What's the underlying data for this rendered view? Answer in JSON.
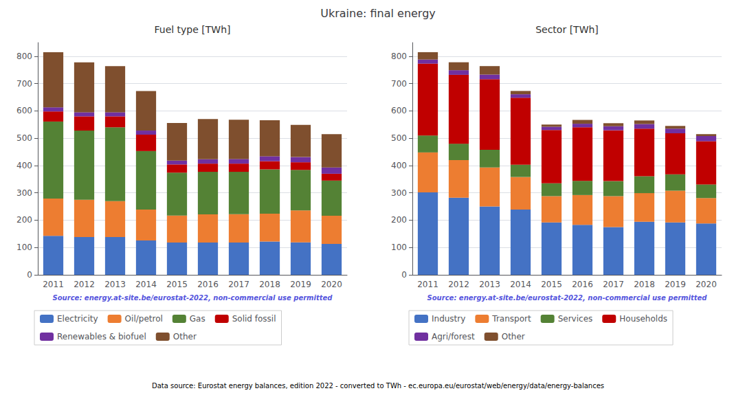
{
  "title": "Ukraine: final energy",
  "annotations": [
    "Data source: Eurostat energy balances, edition 2022 - converted to TWh - ec.europa.eu/eurostat/web/energy/data/energy-balances"
  ],
  "chart_data": [
    {
      "type": "bar",
      "title": "Fuel type [TWh]",
      "categories": [
        "2011",
        "2012",
        "2013",
        "2014",
        "2015",
        "2016",
        "2017",
        "2018",
        "2019",
        "2020"
      ],
      "series": [
        {
          "name": "Electricity",
          "color": "#4472c4",
          "values": [
            143,
            138,
            138,
            126,
            118,
            118,
            118,
            122,
            119,
            113
          ]
        },
        {
          "name": "Oil/petrol",
          "color": "#ed7d31",
          "values": [
            136,
            137,
            132,
            113,
            99,
            103,
            104,
            102,
            117,
            103
          ]
        },
        {
          "name": "Gas",
          "color": "#548235",
          "values": [
            282,
            253,
            270,
            214,
            157,
            156,
            155,
            162,
            148,
            129
          ]
        },
        {
          "name": "Solid fossil",
          "color": "#c00000",
          "values": [
            37,
            52,
            40,
            60,
            30,
            30,
            30,
            30,
            28,
            25
          ]
        },
        {
          "name": "Renewables & biofuel",
          "color": "#7030a0",
          "values": [
            15,
            15,
            15,
            15,
            14,
            16,
            17,
            18,
            19,
            23
          ]
        },
        {
          "name": "Other",
          "color": "#7f4f2e",
          "values": [
            202,
            183,
            169,
            145,
            138,
            147,
            144,
            132,
            118,
            122
          ]
        }
      ],
      "stacked": true,
      "ylim": [
        0,
        850
      ],
      "yticks": [
        0,
        100,
        200,
        300,
        400,
        500,
        600,
        700,
        800
      ],
      "grid": true,
      "legend": "bottom",
      "annotations": [
        "Source: energy.at-site.be/eurostat-2022, non-commercial use permitted"
      ]
    },
    {
      "type": "bar",
      "title": "Sector [TWh]",
      "categories": [
        "2011",
        "2012",
        "2013",
        "2014",
        "2015",
        "2016",
        "2017",
        "2018",
        "2019",
        "2020"
      ],
      "series": [
        {
          "name": "Industry",
          "color": "#4472c4",
          "values": [
            302,
            282,
            250,
            239,
            192,
            183,
            175,
            194,
            192,
            188
          ]
        },
        {
          "name": "Transport",
          "color": "#ed7d31",
          "values": [
            146,
            138,
            143,
            119,
            96,
            109,
            113,
            105,
            116,
            93
          ]
        },
        {
          "name": "Services",
          "color": "#548235",
          "values": [
            62,
            60,
            65,
            45,
            47,
            52,
            55,
            62,
            60,
            50
          ]
        },
        {
          "name": "Households",
          "color": "#c00000",
          "values": [
            263,
            252,
            258,
            245,
            195,
            196,
            186,
            174,
            150,
            158
          ]
        },
        {
          "name": "Agri/forest",
          "color": "#7030a0",
          "values": [
            15,
            17,
            17,
            13,
            12,
            13,
            15,
            17,
            17,
            19
          ]
        },
        {
          "name": "Other",
          "color": "#7f4f2e",
          "values": [
            27,
            29,
            31,
            12,
            8,
            14,
            11,
            13,
            10,
            7
          ]
        }
      ],
      "stacked": true,
      "ylim": [
        0,
        850
      ],
      "yticks": [
        0,
        100,
        200,
        300,
        400,
        500,
        600,
        700,
        800
      ],
      "grid": true,
      "legend": "bottom",
      "annotations": [
        "Source: energy.at-site.be/eurostat-2022, non-commercial use permitted"
      ]
    }
  ]
}
